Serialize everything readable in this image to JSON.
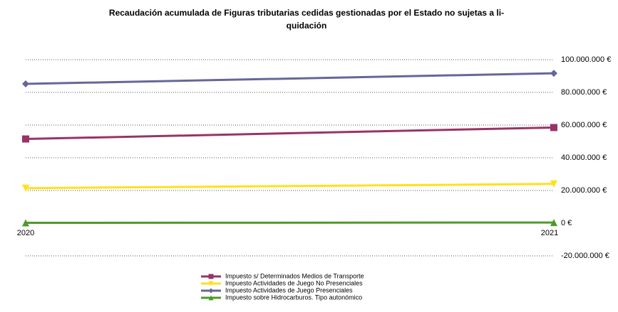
{
  "chart_data": {
    "type": "line",
    "title": "Recaudación acumulada de  Figuras tributarias cedidas gestionadas por el Estado no sujetas a li-quidación",
    "x": [
      "2020",
      "2021"
    ],
    "series": [
      {
        "name": "Impuesto s/ Determinados Medios de Transporte",
        "color": "#993366",
        "marker": "square",
        "values": [
          51500000,
          58500000
        ]
      },
      {
        "name": "Impuesto Actividades de Juego No Presenciales",
        "color": "#ffe11a",
        "marker": "triangle-down",
        "values": [
          21400000,
          24000000
        ]
      },
      {
        "name": "Impuesto Actividades de Juego Presenciales",
        "color": "#666699",
        "marker": "diamond",
        "values": [
          85200000,
          91700000
        ]
      },
      {
        "name": "Impuesto sobre Hidrocarburos. Tipo autonómico",
        "color": "#4e9a2a",
        "marker": "triangle-up",
        "values": [
          200000,
          400000
        ]
      }
    ],
    "ylim": [
      -20000000,
      100000000
    ],
    "yticks": [
      {
        "value": -20000000,
        "label": "-20.000.000 €"
      },
      {
        "value": 0,
        "label": "0 €"
      },
      {
        "value": 20000000,
        "label": "20.000.000 €"
      },
      {
        "value": 40000000,
        "label": "40.000.000 €"
      },
      {
        "value": 60000000,
        "label": "60.000.000 €"
      },
      {
        "value": 80000000,
        "label": "80.000.000 €"
      },
      {
        "value": 100000000,
        "label": "100.000.000 €"
      }
    ],
    "negative_tick_color": "#ff0000",
    "grid": true
  }
}
